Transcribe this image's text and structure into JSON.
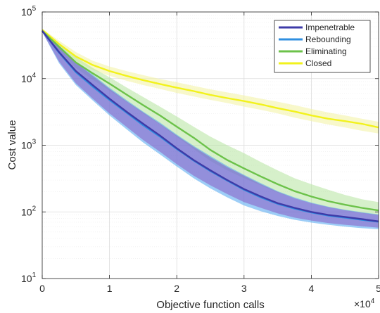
{
  "chart_data": {
    "type": "line",
    "title": "",
    "xlabel": "Objective function calls",
    "ylabel": "Cost value",
    "x_multiplier_label": "×10",
    "x_multiplier_exponent": "4",
    "xlim": [
      0,
      50000
    ],
    "ylim": [
      10,
      100000
    ],
    "yscale": "log",
    "grid": true,
    "minor_grid": true,
    "legend_position": "top-right",
    "x_ticks": [
      0,
      10000,
      20000,
      30000,
      40000,
      50000
    ],
    "x_tick_labels": [
      "0",
      "1",
      "2",
      "3",
      "4",
      "5"
    ],
    "y_ticks": [
      10,
      100,
      1000,
      10000,
      100000
    ],
    "y_tick_bases": [
      "10",
      "10",
      "10",
      "10",
      "10"
    ],
    "y_tick_exponents": [
      "1",
      "2",
      "3",
      "4",
      "5"
    ],
    "x": [
      0,
      2500,
      5000,
      7500,
      10000,
      12500,
      15000,
      17500,
      20000,
      22500,
      25000,
      27500,
      30000,
      32500,
      35000,
      37500,
      40000,
      42500,
      45000,
      47500,
      50000
    ],
    "series": [
      {
        "name": "Impenetrable",
        "color": "#3e3ba8",
        "band_color": "#8a5bc4",
        "values": [
          52000,
          25000,
          13000,
          8000,
          5000,
          3200,
          2100,
          1400,
          900,
          600,
          420,
          300,
          220,
          170,
          135,
          115,
          100,
          90,
          84,
          78,
          72
        ],
        "lower": [
          50000,
          18000,
          8500,
          5000,
          3000,
          1900,
          1200,
          800,
          520,
          350,
          250,
          185,
          140,
          115,
          95,
          82,
          74,
          68,
          64,
          61,
          58
        ],
        "upper": [
          56000,
          31000,
          17500,
          11000,
          7000,
          4600,
          3100,
          2100,
          1400,
          950,
          660,
          470,
          350,
          260,
          200,
          160,
          135,
          118,
          106,
          97,
          90
        ]
      },
      {
        "name": "Rebounding",
        "color": "#2f8fe0",
        "band_color": "#4fa6f0",
        "values": [
          52000,
          24500,
          12500,
          7600,
          4800,
          3100,
          2000,
          1350,
          880,
          590,
          410,
          295,
          215,
          165,
          132,
          112,
          98,
          88,
          82,
          76,
          71
        ],
        "lower": [
          50000,
          17000,
          8000,
          4700,
          2800,
          1750,
          1100,
          730,
          480,
          320,
          225,
          165,
          125,
          102,
          87,
          76,
          69,
          64,
          60,
          57,
          55
        ],
        "upper": [
          56000,
          31500,
          18000,
          11500,
          7300,
          4800,
          3200,
          2200,
          1450,
          980,
          690,
          490,
          360,
          270,
          205,
          165,
          138,
          120,
          108,
          99,
          92
        ]
      },
      {
        "name": "Eliminating",
        "color": "#6cc24a",
        "band_color": "#b5e39e",
        "values": [
          52000,
          30000,
          17500,
          12000,
          8400,
          5800,
          4000,
          2800,
          1900,
          1300,
          850,
          600,
          450,
          340,
          260,
          205,
          170,
          145,
          128,
          115,
          105
        ],
        "lower": [
          50000,
          26000,
          14500,
          9600,
          6600,
          4500,
          3000,
          2050,
          1350,
          880,
          580,
          420,
          320,
          250,
          195,
          160,
          135,
          118,
          105,
          96,
          89
        ],
        "upper": [
          56000,
          34000,
          21000,
          14500,
          10500,
          7400,
          5300,
          3800,
          2700,
          1900,
          1350,
          1000,
          760,
          560,
          420,
          320,
          260,
          215,
          180,
          155,
          140
        ]
      },
      {
        "name": "Closed",
        "color": "#f2f21c",
        "band_color": "#f3f3a0",
        "values": [
          54000,
          33000,
          21500,
          16000,
          13000,
          11000,
          9500,
          8300,
          7300,
          6500,
          5700,
          5100,
          4600,
          4100,
          3600,
          3200,
          2800,
          2500,
          2300,
          2100,
          1850
        ],
        "lower": [
          52000,
          29000,
          18500,
          13500,
          11000,
          9300,
          8000,
          7000,
          6100,
          5400,
          4800,
          4300,
          3800,
          3400,
          3000,
          2600,
          2300,
          2050,
          1850,
          1650,
          1500
        ],
        "upper": [
          56000,
          37000,
          25000,
          18500,
          15200,
          13000,
          11300,
          9900,
          8800,
          7800,
          6900,
          6200,
          5600,
          5000,
          4500,
          4000,
          3500,
          3100,
          2800,
          2500,
          2250
        ]
      }
    ]
  }
}
